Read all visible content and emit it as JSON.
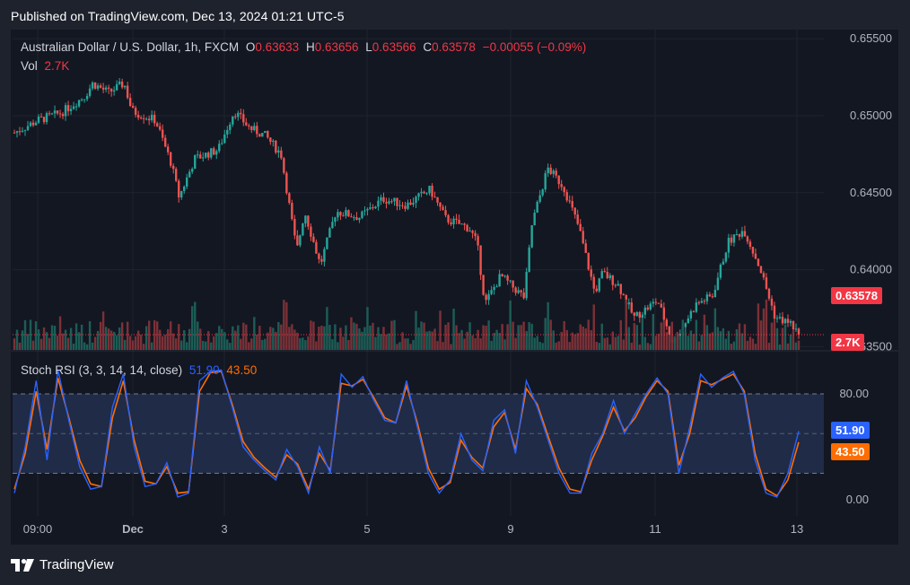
{
  "banner": "Published on TradingView.com, Dec 13, 2024 01:21 UTC-5",
  "legend": {
    "symbol": "Australian Dollar / U.S. Dollar, 1h, FXCM",
    "o_label": "O",
    "o_value": "0.63633",
    "h_label": "H",
    "h_value": "0.63656",
    "l_label": "L",
    "l_value": "0.63566",
    "c_label": "C",
    "c_value": "0.63578",
    "change": "−0.00055 (−0.09%)",
    "vol_label": "Vol",
    "vol_value": "2.7K"
  },
  "rsi_legend": {
    "label": "Stoch RSI (3, 3, 14, 14, close)",
    "k_value": "51.90",
    "d_value": "43.50"
  },
  "footer": {
    "brand": "TradingView"
  },
  "colors": {
    "up": "#26a69a",
    "down": "#ef5350",
    "k_line": "#2962ff",
    "d_line": "#ff6d00",
    "band": "#1f2b47",
    "price_tag": "#f23645"
  },
  "chart_data": [
    {
      "type": "candlestick",
      "title": "Australian Dollar / U.S. Dollar, 1h, FXCM",
      "x_tick_labels": [
        "09:00",
        "Dec",
        "3",
        "5",
        "9",
        "11",
        "13"
      ],
      "y_tick_labels": [
        "0.65500",
        "0.65000",
        "0.64500",
        "0.64000",
        "0.63500"
      ],
      "ylim": [
        0.6345,
        0.6553
      ],
      "current_price": 0.63578,
      "current_price_label": "0.63578",
      "volume_label": "2.7K",
      "grid": true,
      "close_series_approx": [
        {
          "x": 0,
          "y": 0.6489
        },
        {
          "x": 0.03,
          "y": 0.6497
        },
        {
          "x": 0.06,
          "y": 0.6502
        },
        {
          "x": 0.09,
          "y": 0.6513
        },
        {
          "x": 0.1,
          "y": 0.6521
        },
        {
          "x": 0.12,
          "y": 0.6515
        },
        {
          "x": 0.14,
          "y": 0.6521
        },
        {
          "x": 0.15,
          "y": 0.6503
        },
        {
          "x": 0.18,
          "y": 0.6497
        },
        {
          "x": 0.2,
          "y": 0.6469
        },
        {
          "x": 0.21,
          "y": 0.6447
        },
        {
          "x": 0.23,
          "y": 0.6472
        },
        {
          "x": 0.26,
          "y": 0.6478
        },
        {
          "x": 0.28,
          "y": 0.6503
        },
        {
          "x": 0.3,
          "y": 0.6492
        },
        {
          "x": 0.32,
          "y": 0.6487
        },
        {
          "x": 0.34,
          "y": 0.6475
        },
        {
          "x": 0.36,
          "y": 0.6412
        },
        {
          "x": 0.37,
          "y": 0.6438
        },
        {
          "x": 0.39,
          "y": 0.6403
        },
        {
          "x": 0.41,
          "y": 0.6438
        },
        {
          "x": 0.44,
          "y": 0.6434
        },
        {
          "x": 0.47,
          "y": 0.6446
        },
        {
          "x": 0.5,
          "y": 0.6442
        },
        {
          "x": 0.53,
          "y": 0.6452
        },
        {
          "x": 0.55,
          "y": 0.6433
        },
        {
          "x": 0.58,
          "y": 0.6427
        },
        {
          "x": 0.59,
          "y": 0.6417
        },
        {
          "x": 0.6,
          "y": 0.6378
        },
        {
          "x": 0.62,
          "y": 0.6396
        },
        {
          "x": 0.65,
          "y": 0.6382
        },
        {
          "x": 0.66,
          "y": 0.643
        },
        {
          "x": 0.68,
          "y": 0.6466
        },
        {
          "x": 0.7,
          "y": 0.6454
        },
        {
          "x": 0.72,
          "y": 0.6427
        },
        {
          "x": 0.74,
          "y": 0.6385
        },
        {
          "x": 0.75,
          "y": 0.6398
        },
        {
          "x": 0.77,
          "y": 0.639
        },
        {
          "x": 0.79,
          "y": 0.6369
        },
        {
          "x": 0.82,
          "y": 0.638
        },
        {
          "x": 0.84,
          "y": 0.6352
        },
        {
          "x": 0.86,
          "y": 0.637
        },
        {
          "x": 0.87,
          "y": 0.6378
        },
        {
          "x": 0.89,
          "y": 0.6383
        },
        {
          "x": 0.91,
          "y": 0.6418
        },
        {
          "x": 0.93,
          "y": 0.6426
        },
        {
          "x": 0.95,
          "y": 0.6402
        },
        {
          "x": 0.97,
          "y": 0.6369
        },
        {
          "x": 0.99,
          "y": 0.6365
        },
        {
          "x": 1,
          "y": 0.63578
        }
      ]
    },
    {
      "type": "line",
      "title": "Stoch RSI (3, 3, 14, 14, close)",
      "y_tick_labels": [
        "80.00",
        "0.00"
      ],
      "ylim": [
        -10,
        110
      ],
      "band": [
        20,
        80
      ],
      "series": [
        {
          "name": "K",
          "last_value": 51.9,
          "values": [
            5,
            40,
            90,
            30,
            98,
            60,
            25,
            8,
            10,
            70,
            95,
            40,
            10,
            12,
            28,
            2,
            5,
            90,
            97,
            98,
            70,
            40,
            30,
            22,
            15,
            38,
            25,
            5,
            40,
            20,
            95,
            85,
            93,
            75,
            60,
            58,
            90,
            55,
            20,
            5,
            15,
            50,
            30,
            22,
            60,
            68,
            35,
            90,
            70,
            45,
            20,
            5,
            5,
            35,
            50,
            75,
            50,
            65,
            80,
            92,
            80,
            20,
            55,
            95,
            85,
            92,
            97,
            80,
            30,
            5,
            2,
            20,
            51.9
          ]
        },
        {
          "name": "D",
          "last_value": 43.5,
          "values": [
            8,
            35,
            82,
            38,
            92,
            62,
            30,
            12,
            10,
            62,
            90,
            45,
            14,
            12,
            25,
            5,
            6,
            82,
            96,
            97,
            72,
            44,
            32,
            24,
            17,
            34,
            27,
            8,
            35,
            22,
            88,
            86,
            91,
            77,
            62,
            58,
            86,
            58,
            24,
            8,
            13,
            45,
            32,
            24,
            55,
            66,
            38,
            84,
            72,
            48,
            24,
            8,
            6,
            30,
            48,
            70,
            52,
            62,
            78,
            90,
            82,
            26,
            50,
            90,
            87,
            91,
            95,
            82,
            35,
            8,
            3,
            15,
            43.5
          ]
        }
      ]
    }
  ]
}
